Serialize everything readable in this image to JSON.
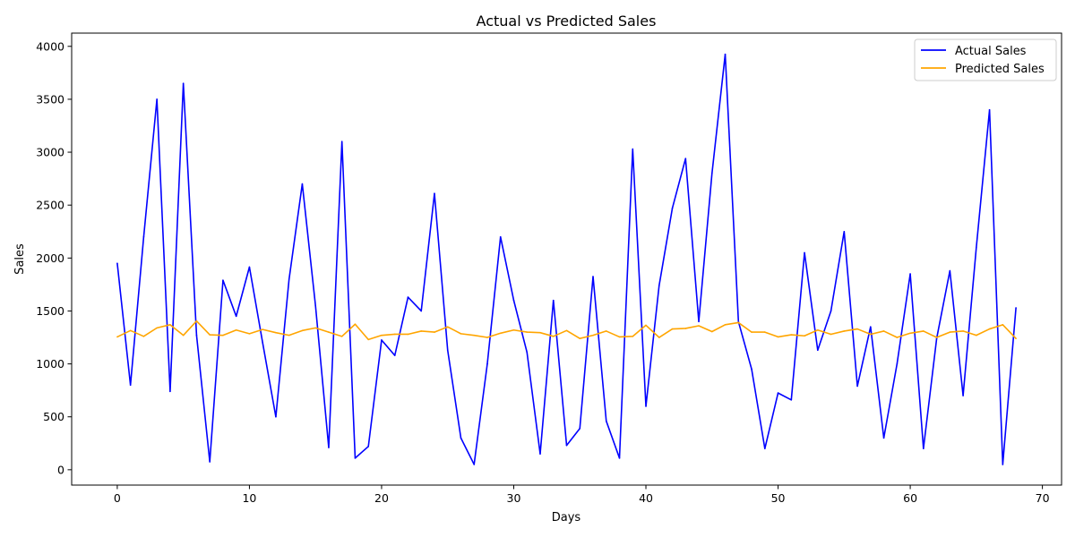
{
  "chart_data": {
    "type": "line",
    "title": "Actual vs Predicted Sales",
    "xlabel": "Days",
    "ylabel": "Sales",
    "xlim": [
      -3.45,
      71.45
    ],
    "ylim": [
      -145,
      4125
    ],
    "xticks": [
      0,
      10,
      20,
      30,
      40,
      50,
      60,
      70
    ],
    "yticks": [
      0,
      500,
      1000,
      1500,
      2000,
      2500,
      3000,
      3500,
      4000
    ],
    "grid": false,
    "legend_position": "top-right",
    "x": [
      0,
      1,
      2,
      3,
      4,
      5,
      6,
      7,
      8,
      9,
      10,
      11,
      12,
      13,
      14,
      15,
      16,
      17,
      18,
      19,
      20,
      21,
      22,
      23,
      24,
      25,
      26,
      27,
      28,
      29,
      30,
      31,
      32,
      33,
      34,
      35,
      36,
      37,
      38,
      39,
      40,
      41,
      42,
      43,
      44,
      45,
      46,
      47,
      48,
      49,
      50,
      51,
      52,
      53,
      54,
      55,
      56,
      57,
      58,
      59,
      60,
      61,
      62,
      63,
      64,
      65,
      66,
      67,
      68
    ],
    "series": [
      {
        "name": "Actual Sales",
        "color": "#0000ff",
        "values": [
          1950,
          800,
          2200,
          3500,
          740,
          3650,
          1270,
          75,
          1790,
          1450,
          1915,
          1200,
          500,
          1800,
          2700,
          1550,
          210,
          3100,
          110,
          220,
          1225,
          1080,
          1630,
          1500,
          2610,
          1130,
          300,
          50,
          1000,
          2200,
          1600,
          1110,
          150,
          1600,
          230,
          390,
          1825,
          460,
          110,
          3030,
          600,
          1740,
          2470,
          2940,
          1400,
          2800,
          3925,
          1400,
          950,
          200,
          725,
          660,
          2050,
          1130,
          1500,
          2250,
          790,
          1350,
          300,
          1000,
          1850,
          200,
          1240,
          1880,
          700,
          2100,
          3400,
          50,
          1530
        ]
      },
      {
        "name": "Predicted Sales",
        "color": "#ffa500",
        "values": [
          1255,
          1315,
          1260,
          1340,
          1370,
          1270,
          1405,
          1275,
          1270,
          1320,
          1285,
          1325,
          1295,
          1270,
          1315,
          1340,
          1300,
          1260,
          1375,
          1230,
          1270,
          1280,
          1280,
          1310,
          1300,
          1350,
          1285,
          1270,
          1250,
          1290,
          1320,
          1300,
          1295,
          1260,
          1315,
          1240,
          1270,
          1310,
          1255,
          1260,
          1365,
          1250,
          1330,
          1335,
          1360,
          1305,
          1370,
          1390,
          1300,
          1300,
          1255,
          1275,
          1265,
          1320,
          1280,
          1310,
          1330,
          1280,
          1310,
          1250,
          1290,
          1310,
          1250,
          1300,
          1310,
          1270,
          1330,
          1370,
          1240
        ]
      }
    ]
  }
}
